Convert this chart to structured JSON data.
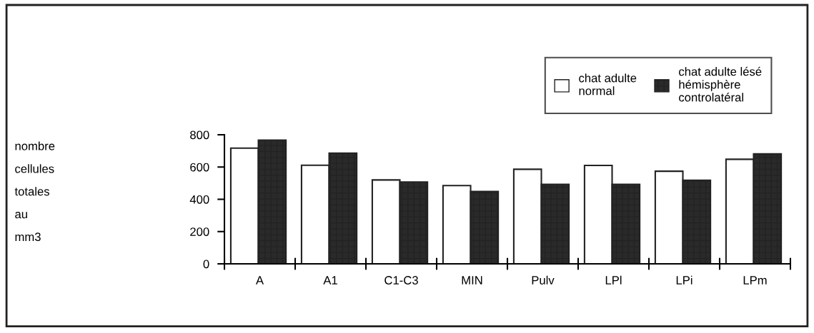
{
  "chart_data": {
    "type": "bar",
    "ylabel": "nombre\ncellules\ntotales\nau\nmm3",
    "categories": [
      "A",
      "A1",
      "C1-C3",
      "MIN",
      "Pulv",
      "LPl",
      "LPi",
      "LPm"
    ],
    "series": [
      {
        "name": "chat adulte\nnormal",
        "color": "#ffffff",
        "values": [
          717,
          611,
          520,
          485,
          586,
          610,
          574,
          648
        ]
      },
      {
        "name": "chat adulte lésé\nhémisphère\ncontrolatéral",
        "color": "#2a2a2a",
        "values": [
          767,
          686,
          507,
          448,
          493,
          493,
          518,
          682
        ]
      }
    ],
    "ylim": [
      0,
      800
    ],
    "yticks": [
      0,
      200,
      400,
      600,
      800
    ],
    "grid": false,
    "legend": "top right"
  }
}
